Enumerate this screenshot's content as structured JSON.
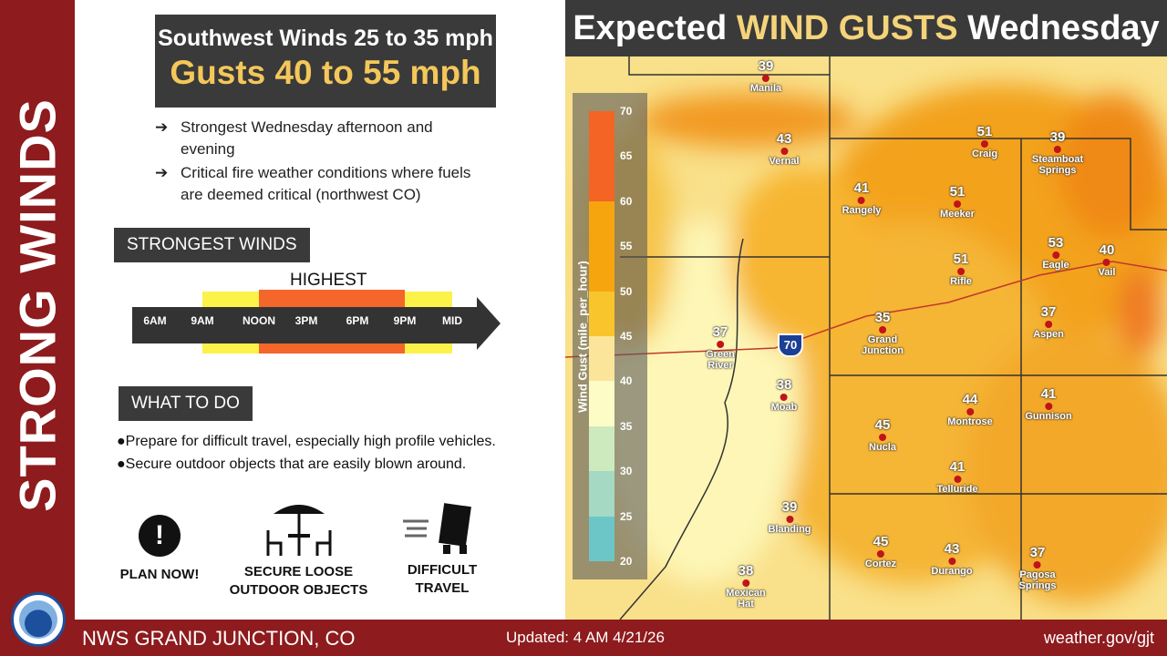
{
  "sidebar": {
    "title": "STRONG WINDS"
  },
  "headline": {
    "line1": "Southwest Winds 25 to 35 mph",
    "line2": "Gusts 40 to 55 mph"
  },
  "bullets": [
    {
      "icon": "arrow-right-icon",
      "text1": "Strongest Wednesday afternoon and",
      "text2": "evening"
    },
    {
      "icon": "arrow-right-icon",
      "text1": "Critical fire weather conditions where fuels",
      "text2": "are deemed critical (northwest CO)"
    }
  ],
  "strongest": {
    "label": "STRONGEST WINDS",
    "highest": "HIGHEST",
    "ticks": [
      "6AM",
      "9AM",
      "NOON",
      "3PM",
      "6PM",
      "9PM",
      "MID"
    ],
    "elevated_window": [
      "9AM",
      "MID"
    ],
    "highest_window": [
      "NOON",
      "9PM"
    ],
    "colors": {
      "elevated": "#fbf24a",
      "highest": "#f4662a"
    }
  },
  "what_to_do": {
    "label": "WHAT TO DO",
    "items": [
      "Prepare for difficult travel, especially high profile vehicles.",
      "Secure outdoor objects that are easily blown around."
    ]
  },
  "icons": [
    {
      "icon": "exclamation-icon",
      "l1": "PLAN NOW!",
      "l2": ""
    },
    {
      "icon": "patio-table-icon",
      "l1": "SECURE LOOSE",
      "l2": "OUTDOOR OBJECTS"
    },
    {
      "icon": "truck-wind-icon",
      "l1": "DIFFICULT",
      "l2": "TRAVEL"
    }
  ],
  "map": {
    "title_pre": "Expected ",
    "title_hl": "WIND GUSTS",
    "title_post": " Wednesday",
    "interstate": "70",
    "legend": {
      "title": "Wind Gust (mile_per_hour)",
      "ticks": [
        "70",
        "65",
        "60",
        "55",
        "50",
        "45",
        "40",
        "35",
        "30",
        "25",
        "20"
      ],
      "bins": [
        {
          "range": [
            60,
            70
          ],
          "color": "#f46424"
        },
        {
          "range": [
            50,
            60
          ],
          "color": "#f6a50e"
        },
        {
          "range": [
            45,
            50
          ],
          "color": "#f9c52c"
        },
        {
          "range": [
            40,
            45
          ],
          "color": "#fbe59a"
        },
        {
          "range": [
            35,
            40
          ],
          "color": "#fdfbc6"
        },
        {
          "range": [
            30,
            35
          ],
          "color": "#cdeabf"
        },
        {
          "range": [
            25,
            30
          ],
          "color": "#a5d9c3"
        },
        {
          "range": [
            20,
            25
          ],
          "color": "#6cc6c8"
        }
      ]
    },
    "cities": [
      {
        "v": "39",
        "n": "Manila"
      },
      {
        "v": "43",
        "n": "Vernal"
      },
      {
        "v": "41",
        "n": "Rangely"
      },
      {
        "v": "51",
        "n": "Meeker"
      },
      {
        "v": "51",
        "n": "Craig"
      },
      {
        "v": "39",
        "n": "Steamboat\nSprings"
      },
      {
        "v": "53",
        "n": "Eagle"
      },
      {
        "v": "40",
        "n": "Vail"
      },
      {
        "v": "51",
        "n": "Rifle"
      },
      {
        "v": "37",
        "n": "Aspen"
      },
      {
        "v": "37",
        "n": "Green\nRiver"
      },
      {
        "v": "35",
        "n": "Grand\nJunction"
      },
      {
        "v": "38",
        "n": "Moab"
      },
      {
        "v": "44",
        "n": "Montrose"
      },
      {
        "v": "41",
        "n": "Gunnison"
      },
      {
        "v": "45",
        "n": "Nucla"
      },
      {
        "v": "41",
        "n": "Telluride"
      },
      {
        "v": "39",
        "n": "Blanding"
      },
      {
        "v": "45",
        "n": "Cortez"
      },
      {
        "v": "43",
        "n": "Durango"
      },
      {
        "v": "37",
        "n": "Pagosa\nSprings"
      },
      {
        "v": "38",
        "n": "Mexican\nHat"
      }
    ]
  },
  "footer": {
    "office": "NWS GRAND JUNCTION, CO",
    "updated": "Updated: 4 AM 4/21/26",
    "site": "weather.gov/gjt"
  }
}
